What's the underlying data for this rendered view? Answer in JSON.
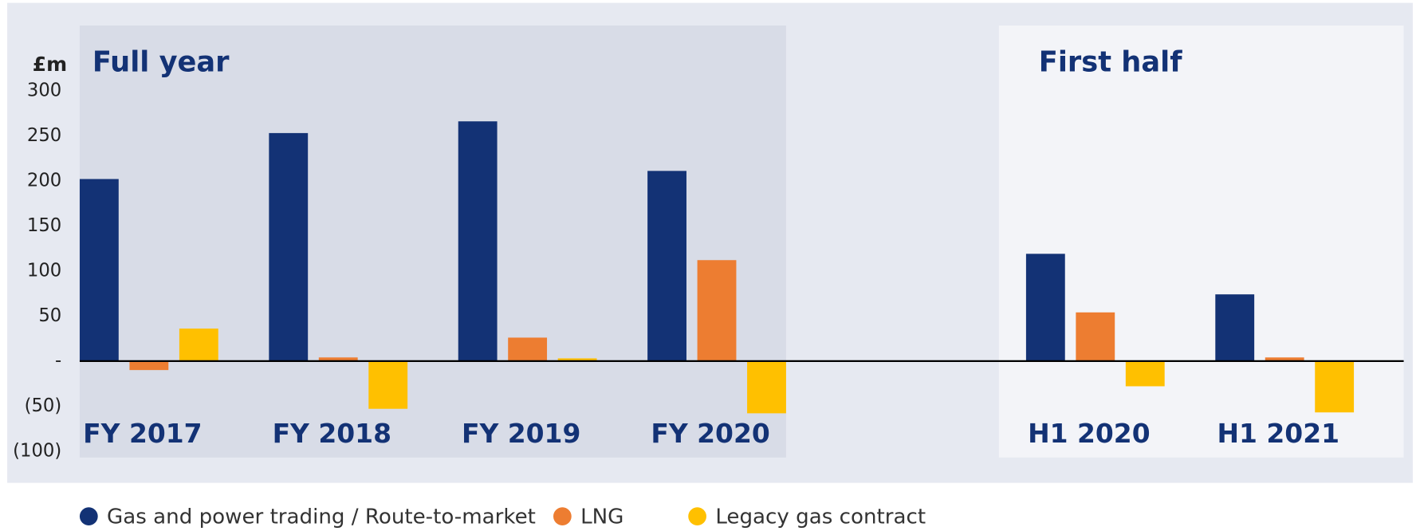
{
  "chart_data": {
    "type": "bar",
    "y_axis_label": "£m",
    "sections": [
      "Full year",
      "First half"
    ],
    "categories": [
      "FY 2017",
      "FY 2018",
      "FY 2019",
      "FY 2020",
      null,
      "H1 2020",
      "H1 2021"
    ],
    "series": [
      {
        "name": "Gas and power trading / Route-to-market",
        "color": "#133275",
        "values": [
          202,
          253,
          266,
          211,
          null,
          119,
          74
        ]
      },
      {
        "name": "LNG",
        "color": "#ed7d31",
        "values": [
          -10,
          4,
          26,
          112,
          null,
          54,
          4
        ]
      },
      {
        "name": "Legacy gas contract",
        "color": "#ffc000",
        "values": [
          36,
          -53,
          3,
          -58,
          null,
          -28,
          -57
        ]
      }
    ],
    "ylim": [
      -100,
      300
    ],
    "yticks": [
      {
        "value": -100,
        "label": "(100)"
      },
      {
        "value": -50,
        "label": "(50)"
      },
      {
        "value": 0,
        "label": "-"
      },
      50,
      100,
      150,
      200,
      250,
      300
    ],
    "grid": false,
    "legend": "bottom"
  }
}
